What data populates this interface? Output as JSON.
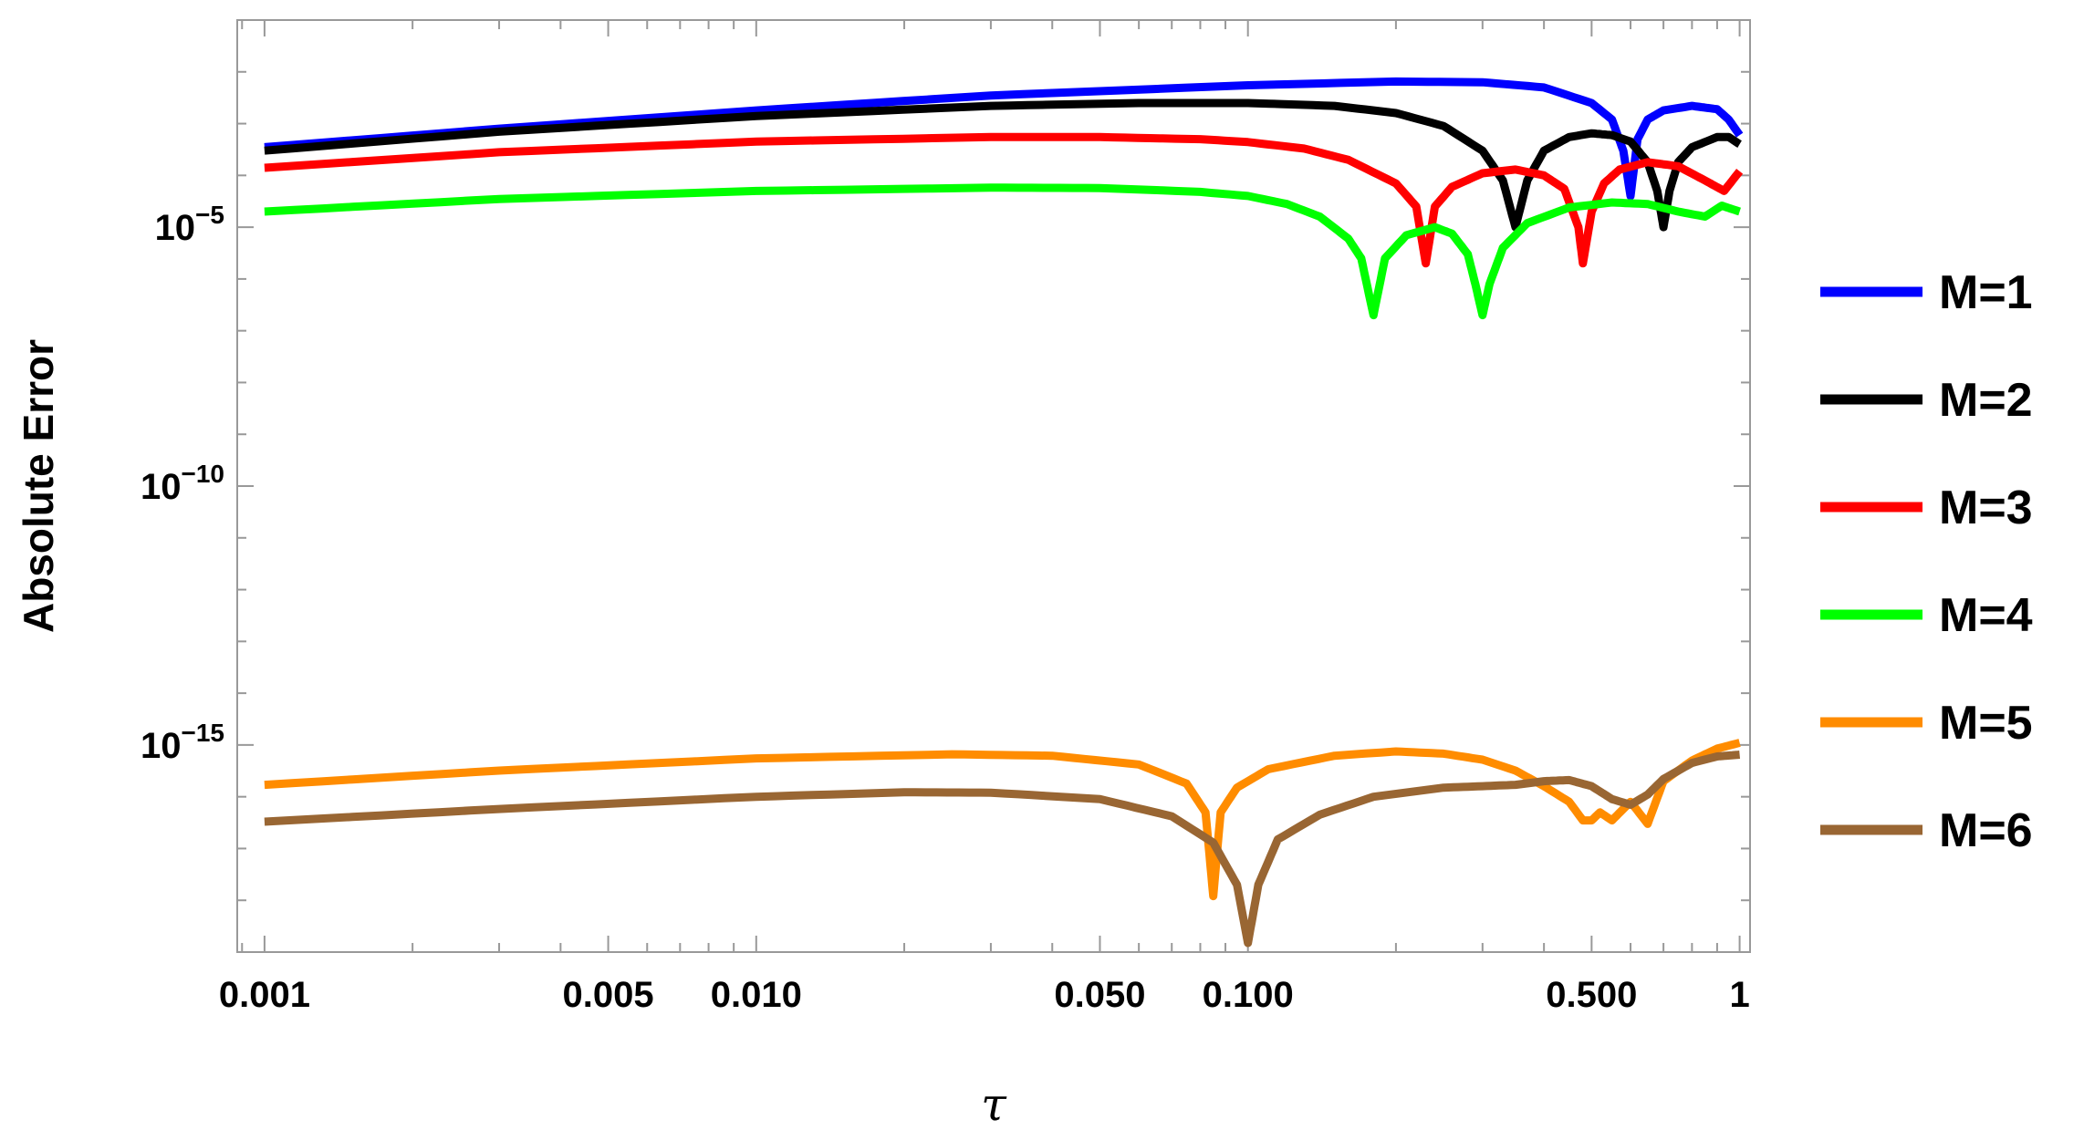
{
  "chart_data": {
    "type": "line",
    "title": "",
    "xlabel": "τ",
    "ylabel": "Absolute Error",
    "x_scale": "log",
    "y_scale": "log",
    "xlim": [
      0.00088,
      1.05
    ],
    "ylim": [
      1e-19,
      0.1
    ],
    "x_ticks": [
      {
        "value": 0.001,
        "label": "0.001"
      },
      {
        "value": 0.005,
        "label": "0.005"
      },
      {
        "value": 0.01,
        "label": "0.010"
      },
      {
        "value": 0.05,
        "label": "0.050"
      },
      {
        "value": 0.1,
        "label": "0.100"
      },
      {
        "value": 0.5,
        "label": "0.500"
      },
      {
        "value": 1,
        "label": "1"
      }
    ],
    "y_ticks": [
      {
        "value": 1e-05,
        "base": "10",
        "exp": "−5"
      },
      {
        "value": 1e-10,
        "base": "10",
        "exp": "−10"
      },
      {
        "value": 1e-15,
        "base": "10",
        "exp": "−15"
      }
    ],
    "grid": false,
    "legend_position": "right",
    "series": [
      {
        "name": "M=1",
        "color": "#0000ff",
        "x": [
          0.001,
          0.003,
          0.01,
          0.03,
          0.1,
          0.2,
          0.3,
          0.4,
          0.5,
          0.55,
          0.58,
          0.6,
          0.62,
          0.65,
          0.7,
          0.8,
          0.9,
          0.95,
          1.0
        ],
        "y": [
          0.00035,
          0.0008,
          0.0018,
          0.0035,
          0.0055,
          0.0065,
          0.0063,
          0.005,
          0.0025,
          0.0012,
          0.0003,
          4e-05,
          0.0005,
          0.0012,
          0.0018,
          0.0022,
          0.0019,
          0.0012,
          0.0006
        ]
      },
      {
        "name": "M=2",
        "color": "#000000",
        "x": [
          0.001,
          0.003,
          0.01,
          0.03,
          0.06,
          0.1,
          0.15,
          0.2,
          0.25,
          0.3,
          0.33,
          0.35,
          0.37,
          0.4,
          0.45,
          0.5,
          0.55,
          0.6,
          0.65,
          0.68,
          0.7,
          0.72,
          0.75,
          0.8,
          0.9,
          0.95,
          1.0
        ],
        "y": [
          0.0003,
          0.0007,
          0.0014,
          0.0022,
          0.0025,
          0.0025,
          0.0022,
          0.0016,
          0.0009,
          0.0003,
          8e-05,
          1e-05,
          8e-05,
          0.0003,
          0.00055,
          0.00065,
          0.0006,
          0.00045,
          0.00018,
          5e-05,
          1e-05,
          5e-05,
          0.00018,
          0.00035,
          0.00055,
          0.00055,
          0.0004
        ]
      },
      {
        "name": "M=3",
        "color": "#ff0000",
        "x": [
          0.001,
          0.003,
          0.01,
          0.03,
          0.05,
          0.08,
          0.1,
          0.13,
          0.16,
          0.2,
          0.22,
          0.23,
          0.24,
          0.26,
          0.3,
          0.35,
          0.4,
          0.44,
          0.47,
          0.48,
          0.5,
          0.53,
          0.57,
          0.65,
          0.75,
          0.85,
          0.93,
          1.0
        ],
        "y": [
          0.00014,
          0.00028,
          0.00045,
          0.00055,
          0.00055,
          0.0005,
          0.00044,
          0.00033,
          0.0002,
          7e-05,
          2.5e-05,
          2e-06,
          2.5e-05,
          6e-05,
          0.00011,
          0.00013,
          0.0001,
          5.5e-05,
          1e-05,
          2e-06,
          2e-05,
          7e-05,
          0.00013,
          0.00018,
          0.00015,
          8e-05,
          5e-05,
          0.00012
        ]
      },
      {
        "name": "M=4",
        "color": "#00ff00",
        "x": [
          0.001,
          0.003,
          0.01,
          0.03,
          0.05,
          0.08,
          0.1,
          0.12,
          0.14,
          0.16,
          0.17,
          0.18,
          0.19,
          0.21,
          0.24,
          0.26,
          0.28,
          0.29,
          0.3,
          0.31,
          0.33,
          0.37,
          0.45,
          0.55,
          0.65,
          0.75,
          0.85,
          0.92,
          1.0
        ],
        "y": [
          2e-05,
          3.5e-05,
          5e-05,
          5.8e-05,
          5.7e-05,
          4.8e-05,
          4e-05,
          2.8e-05,
          1.6e-05,
          6e-06,
          2.5e-06,
          2e-07,
          2.5e-06,
          7e-06,
          1e-05,
          7.5e-06,
          3e-06,
          8e-07,
          2e-07,
          8e-07,
          4e-06,
          1.2e-05,
          2.4e-05,
          3e-05,
          2.8e-05,
          2e-05,
          1.6e-05,
          2.6e-05,
          2e-05
        ]
      },
      {
        "name": "M=5",
        "color": "#ff8c00",
        "x": [
          0.001,
          0.003,
          0.01,
          0.025,
          0.04,
          0.06,
          0.075,
          0.082,
          0.085,
          0.088,
          0.095,
          0.11,
          0.15,
          0.2,
          0.25,
          0.3,
          0.35,
          0.4,
          0.45,
          0.48,
          0.5,
          0.52,
          0.55,
          0.6,
          0.65,
          0.7,
          0.8,
          0.9,
          1.0
        ],
        "y": [
          1.7e-16,
          3.2e-16,
          5.5e-16,
          6.6e-16,
          6.2e-16,
          4.2e-16,
          1.8e-16,
          5e-17,
          1.2e-18,
          5e-17,
          1.5e-16,
          3.4e-16,
          6.2e-16,
          7.5e-16,
          6.8e-16,
          5.2e-16,
          3.2e-16,
          1.6e-16,
          8e-17,
          3.5e-17,
          3.5e-17,
          5e-17,
          3.5e-17,
          8e-17,
          3e-17,
          2e-16,
          5e-16,
          8.5e-16,
          1.1e-15
        ]
      },
      {
        "name": "M=6",
        "color": "#996633",
        "x": [
          0.001,
          0.003,
          0.01,
          0.02,
          0.03,
          0.05,
          0.07,
          0.085,
          0.095,
          0.1,
          0.105,
          0.115,
          0.14,
          0.18,
          0.25,
          0.3,
          0.35,
          0.4,
          0.45,
          0.5,
          0.55,
          0.6,
          0.65,
          0.7,
          0.8,
          0.9,
          1.0
        ],
        "y": [
          3.3e-17,
          5.8e-17,
          1e-16,
          1.22e-16,
          1.2e-16,
          9e-17,
          4.2e-17,
          1.3e-17,
          2e-18,
          1.5e-19,
          2e-18,
          1.5e-17,
          4.5e-17,
          1e-16,
          1.5e-16,
          1.6e-16,
          1.7e-16,
          2e-16,
          2.1e-16,
          1.6e-16,
          9e-17,
          7e-17,
          1.1e-16,
          2.2e-16,
          4.5e-16,
          6e-16,
          6.5e-16
        ]
      }
    ]
  }
}
